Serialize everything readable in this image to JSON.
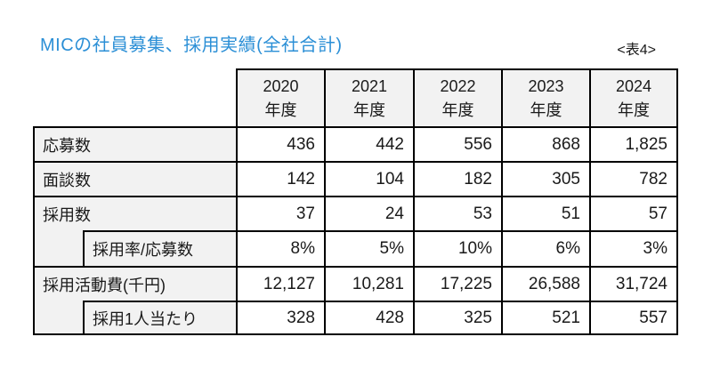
{
  "header": {
    "title": "MICの社員募集、採用実績(全社合計)",
    "table_tag": "<表4>"
  },
  "table": {
    "columns": [
      {
        "year": "2020",
        "suffix": "年度"
      },
      {
        "year": "2021",
        "suffix": "年度"
      },
      {
        "year": "2022",
        "suffix": "年度"
      },
      {
        "year": "2023",
        "suffix": "年度"
      },
      {
        "year": "2024",
        "suffix": "年度"
      }
    ],
    "rows": [
      {
        "label": "応募数",
        "indent": false,
        "values": [
          "436",
          "442",
          "556",
          "868",
          "1,825"
        ]
      },
      {
        "label": "面談数",
        "indent": false,
        "values": [
          "142",
          "104",
          "182",
          "305",
          "782"
        ]
      },
      {
        "label": "採用数",
        "indent": false,
        "values": [
          "37",
          "24",
          "53",
          "51",
          "57"
        ]
      },
      {
        "label": "採用率/応募数",
        "indent": true,
        "values": [
          "8%",
          "5%",
          "10%",
          "6%",
          "3%"
        ]
      },
      {
        "label": "採用活動費(千円)",
        "indent": false,
        "values": [
          "12,127",
          "10,281",
          "17,225",
          "26,588",
          "31,724"
        ]
      },
      {
        "label": "採用1人当たり",
        "indent": true,
        "values": [
          "328",
          "428",
          "325",
          "521",
          "557"
        ]
      }
    ],
    "colors": {
      "title_blue": "#2B8FD6",
      "cell_fill_gray": "#F2F2F2",
      "border_black": "#000000",
      "background": "#FFFFFF"
    }
  }
}
